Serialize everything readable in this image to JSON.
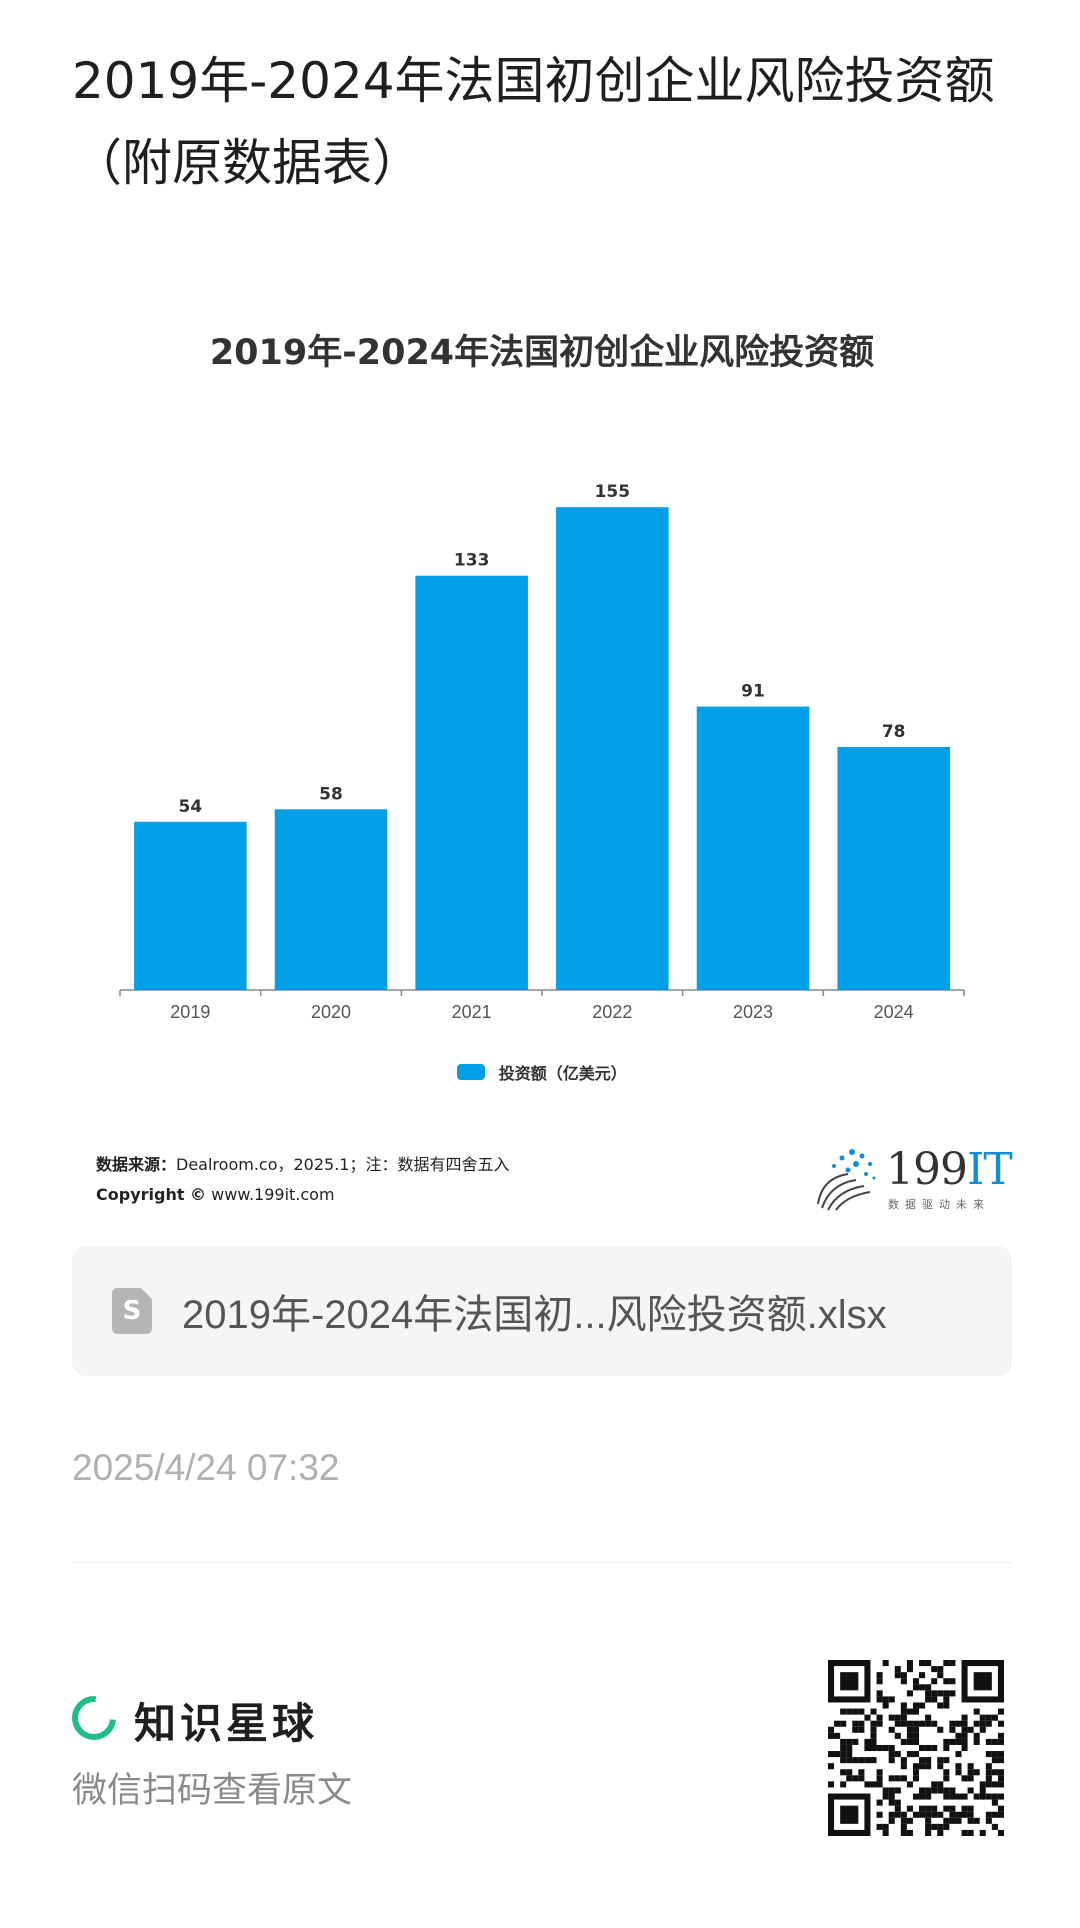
{
  "header": {
    "title": "2019年-2024年法国初创企业风险投资额（附原数据表）"
  },
  "chart_data": {
    "type": "bar",
    "title": "2019年-2024年法国初创企业风险投资额",
    "categories": [
      "2019",
      "2020",
      "2021",
      "2022",
      "2023",
      "2024"
    ],
    "series": [
      {
        "name": "投资额（亿美元）",
        "values": [
          54,
          58,
          133,
          155,
          91,
          78
        ]
      }
    ],
    "data_labels": [
      "54",
      "58",
      "133",
      "155",
      "91",
      "78"
    ],
    "ylim": [
      0,
      165
    ],
    "grid": false,
    "legend": "bottom",
    "color": "#039fe6"
  },
  "source": {
    "label": "数据来源：",
    "text": "Dealroom.co，2025.1；注：数据有四舍五入",
    "copyright_label": "Copyright ©",
    "copyright_text": "www.199it.com"
  },
  "logo": {
    "main": "199",
    "accent": "IT",
    "tagline": "数据驱动未来"
  },
  "file": {
    "icon": "spreadsheet-file-icon",
    "icon_letter": "S",
    "name": "2019年-2024年法国初...风险投资额.xlsx"
  },
  "meta": {
    "timestamp": "2025/4/24 07:32"
  },
  "footer": {
    "brand_icon": "zsxq-ring-icon",
    "brand_name": "知识星球",
    "scan_hint": "微信扫码查看原文",
    "brand_color": "#1fbe86"
  }
}
